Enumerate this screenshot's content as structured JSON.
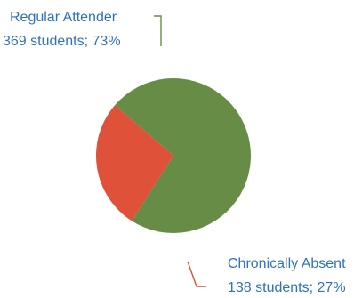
{
  "chart_data": {
    "type": "pie",
    "slices": [
      {
        "label_line1": "Regular Attender",
        "label_line2": "369 students; 73%",
        "value": 369,
        "percent": 73,
        "color": "#668c45"
      },
      {
        "label_line1": "Chronically Absent",
        "label_line2": "138 students; 27%",
        "value": 138,
        "percent": 27,
        "color": "#df5138"
      }
    ],
    "label_color": "#2f72b8",
    "legend": "none"
  }
}
